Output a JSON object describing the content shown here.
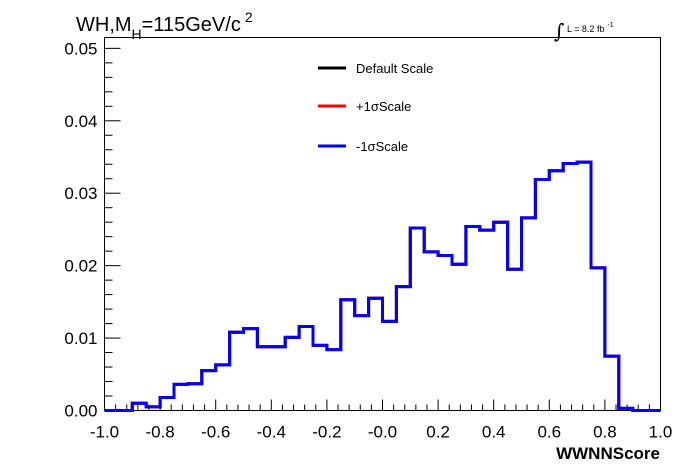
{
  "chart_data": {
    "type": "line",
    "drawstyle": "step",
    "title": {
      "main": "WH,M",
      "subscript": "H",
      "rest": "=115GeV/c",
      "superscript": "2"
    },
    "lumi": {
      "integral_symbol": "∫",
      "text": "L = 8.2 fb",
      "superscript": "-1"
    },
    "xlabel": "WWNNScore",
    "ylabel": "",
    "xlim": [
      -1.0,
      1.0
    ],
    "ylim": [
      0.0,
      0.0515
    ],
    "x_tick_labels": [
      "-1.0",
      "-0.8",
      "-0.6",
      "-0.4",
      "-0.2",
      "-0.0",
      "0.2",
      "0.4",
      "0.6",
      "0.8",
      "1.0"
    ],
    "y_tick_labels": [
      "0.00",
      "0.01",
      "0.02",
      "0.03",
      "0.04",
      "0.05"
    ],
    "bin_edges_start": -1.0,
    "bin_width": 0.05,
    "legend": {
      "position": "top-center",
      "entries": [
        {
          "label": "Default Scale",
          "color": "#000000"
        },
        {
          "label": "+1σScale",
          "color": "#ff0000"
        },
        {
          "label": "-1σScale",
          "color": "#0000ff"
        }
      ]
    },
    "series": [
      {
        "name": "Default Scale",
        "color": "#000000",
        "values": [
          0.0,
          0.0,
          0.001,
          0.0005,
          0.0018,
          0.0036,
          0.0037,
          0.0055,
          0.0063,
          0.0108,
          0.0113,
          0.0088,
          0.0088,
          0.0101,
          0.0116,
          0.009,
          0.0084,
          0.0153,
          0.0131,
          0.0155,
          0.0123,
          0.0171,
          0.0252,
          0.0219,
          0.0214,
          0.0202,
          0.0254,
          0.0249,
          0.026,
          0.0195,
          0.0266,
          0.0319,
          0.0331,
          0.0341,
          0.0343,
          0.0197,
          0.0075,
          0.0003,
          0.0,
          0.0
        ]
      },
      {
        "name": "+1σScale",
        "color": "#ff0000",
        "values": [
          0.0,
          0.0,
          0.001,
          0.0005,
          0.0018,
          0.0036,
          0.0037,
          0.0055,
          0.0063,
          0.0108,
          0.0113,
          0.0088,
          0.0088,
          0.0101,
          0.0116,
          0.009,
          0.0084,
          0.0153,
          0.0131,
          0.0155,
          0.0123,
          0.0171,
          0.0252,
          0.0219,
          0.0214,
          0.0202,
          0.0254,
          0.0249,
          0.026,
          0.0195,
          0.0266,
          0.0319,
          0.0331,
          0.0341,
          0.0343,
          0.0197,
          0.0075,
          0.0003,
          0.0,
          0.0
        ]
      },
      {
        "name": "-1σScale",
        "color": "#0000ff",
        "values": [
          0.0,
          0.0,
          0.001,
          0.0005,
          0.0018,
          0.0036,
          0.0037,
          0.0055,
          0.0063,
          0.0108,
          0.0113,
          0.0088,
          0.0088,
          0.0101,
          0.0116,
          0.009,
          0.0084,
          0.0153,
          0.0131,
          0.0155,
          0.0123,
          0.0171,
          0.0252,
          0.0219,
          0.0214,
          0.0202,
          0.0254,
          0.0249,
          0.026,
          0.0195,
          0.0266,
          0.0319,
          0.0331,
          0.0341,
          0.0343,
          0.0197,
          0.0075,
          0.0003,
          0.0,
          0.0
        ]
      }
    ],
    "grid": false
  }
}
